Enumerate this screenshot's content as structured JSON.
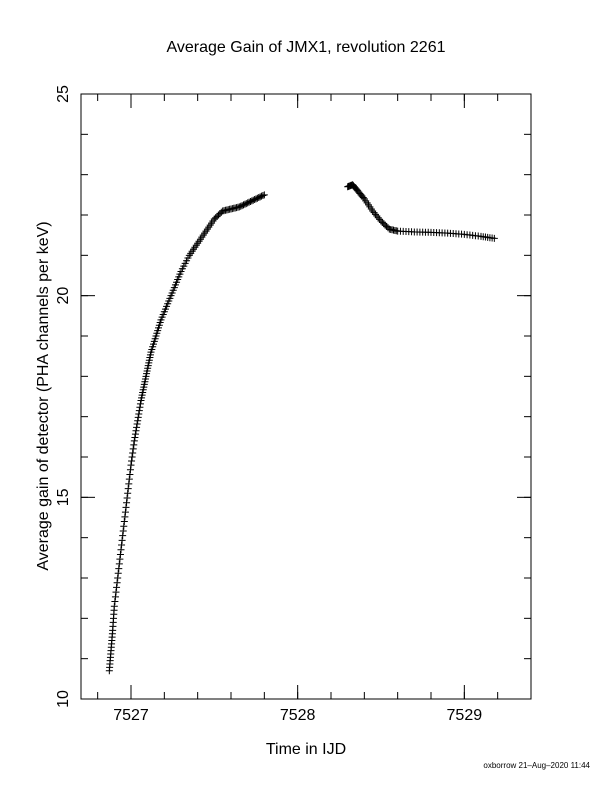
{
  "footer": "oxborrow 21–Aug–2020 11:44",
  "chart_data": {
    "type": "scatter",
    "title": "Average Gain of JMX1, revolution 2261",
    "xlabel": "Time in IJD",
    "ylabel": "Average gain of detector (PHA channels per keV)",
    "xlim": [
      7526.7,
      7529.4
    ],
    "ylim": [
      10,
      25
    ],
    "xticks": [
      7527,
      7528,
      7529
    ],
    "yticks": [
      10,
      15,
      20,
      25
    ],
    "x_minor_step": 0.2,
    "y_minor_step": 1,
    "marker": "plus",
    "grid": false,
    "series": [
      {
        "x": [
          7526.87,
          7526.88,
          7526.89,
          7526.9,
          7526.92,
          7526.94,
          7526.96,
          7526.98,
          7527.0,
          7527.02,
          7527.04,
          7527.06,
          7527.08,
          7527.1,
          7527.12,
          7527.15,
          7527.18,
          7527.22,
          7527.26,
          7527.3,
          7527.35,
          7527.4,
          7527.45,
          7527.5,
          7527.55,
          7527.6,
          7527.65,
          7527.7,
          7527.75,
          7527.8,
          7528.3,
          7528.33,
          7528.36,
          7528.4,
          7528.45,
          7528.5,
          7528.55,
          7528.6,
          7528.7,
          7528.8,
          7528.9,
          7529.0,
          7529.1,
          7529.18
        ],
        "y": [
          10.7,
          11.2,
          11.7,
          12.3,
          13.0,
          13.7,
          14.4,
          15.1,
          15.8,
          16.4,
          16.9,
          17.4,
          17.8,
          18.2,
          18.6,
          19.0,
          19.4,
          19.8,
          20.2,
          20.6,
          21.0,
          21.3,
          21.6,
          21.9,
          22.1,
          22.15,
          22.2,
          22.3,
          22.4,
          22.5,
          22.7,
          22.75,
          22.6,
          22.4,
          22.1,
          21.85,
          21.65,
          21.6,
          21.58,
          21.57,
          21.55,
          21.52,
          21.47,
          21.42
        ]
      }
    ]
  }
}
